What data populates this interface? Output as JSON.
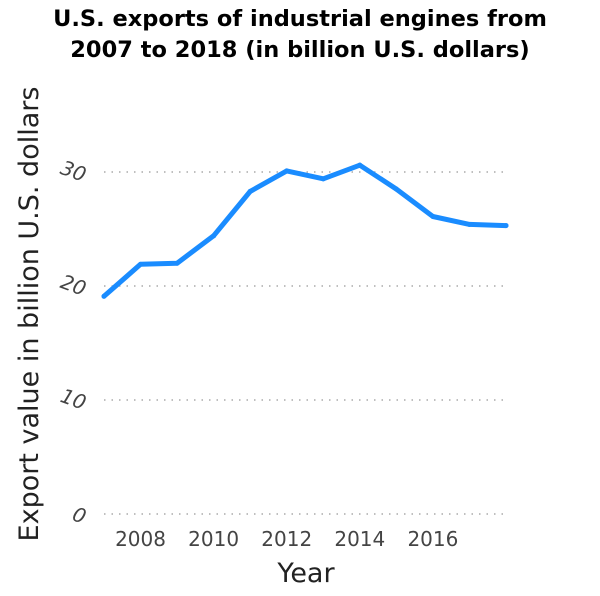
{
  "chart_data": {
    "type": "line",
    "title_lines": [
      "U.S. exports of industrial engines from",
      "2007 to 2018 (in billion U.S. dollars)"
    ],
    "xlabel": "Year",
    "ylabel": "Export value in billion U.S. dollars",
    "x": [
      2007,
      2008,
      2009,
      2010,
      2011,
      2012,
      2013,
      2014,
      2015,
      2016,
      2017,
      2018
    ],
    "series": [
      {
        "values": [
          19.1,
          21.9,
          22.0,
          24.4,
          28.3,
          30.1,
          29.4,
          30.6,
          28.5,
          26.1,
          25.4,
          25.3
        ]
      }
    ],
    "xticks": [
      2008,
      2010,
      2012,
      2014,
      2016
    ],
    "xtick_labels": [
      "2008",
      "2010",
      "2012",
      "2014",
      "2016"
    ],
    "yticks": [
      0,
      10,
      20,
      30
    ],
    "ytick_labels": [
      "0",
      "10",
      "20",
      "30"
    ],
    "xlim": [
      2007,
      2018
    ],
    "ylim": [
      0,
      30
    ],
    "grid": "horizontal-dotted",
    "line_color": "#1a8cff"
  }
}
